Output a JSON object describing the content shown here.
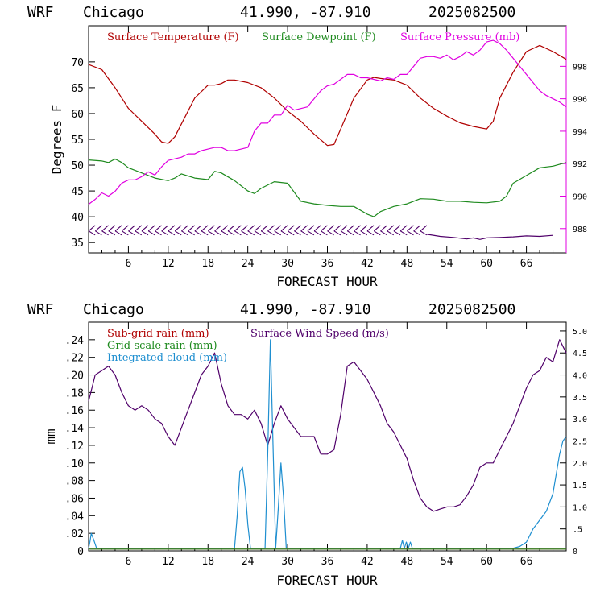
{
  "header": {
    "model": "WRF",
    "location": "Chicago",
    "coords": "41.990, -87.910",
    "run": "2025082500"
  },
  "colors": {
    "temperature": "#b00000",
    "dewpoint": "#1e8a1e",
    "pressure": "#e000e0",
    "wind_barb": "#50006a",
    "subgrid_rain": "#b00000",
    "gridscale_rain": "#1e8a1e",
    "cloud": "#1f8fd0",
    "wind_speed": "#50006a"
  },
  "chart_data": [
    {
      "type": "line",
      "xlabel": "FORECAST HOUR",
      "ylabel": "Degrees F",
      "xlim": [
        0,
        72
      ],
      "ylim": [
        33,
        77
      ],
      "y2lim": [
        986.5,
        1000.5
      ],
      "xticks": [
        6,
        12,
        18,
        24,
        30,
        36,
        42,
        48,
        54,
        60,
        66
      ],
      "yticks": [
        35,
        40,
        45,
        50,
        55,
        60,
        65,
        70
      ],
      "y2ticks": [
        988,
        990,
        992,
        994,
        996,
        998
      ],
      "legend": [
        "Surface Temperature (F)",
        "Surface Dewpoint (F)",
        "Surface Pressure (mb)"
      ],
      "series": [
        {
          "name": "Surface Temperature (F)",
          "axis": "left",
          "x": [
            0,
            2,
            4,
            6,
            8,
            10,
            11,
            12,
            13,
            14,
            16,
            18,
            19,
            20,
            21,
            22,
            24,
            26,
            28,
            30,
            32,
            34,
            36,
            37,
            38,
            40,
            42,
            43,
            44,
            46,
            48,
            50,
            52,
            54,
            56,
            58,
            60,
            61,
            62,
            64,
            66,
            68,
            70,
            72
          ],
          "values": [
            69.5,
            68.5,
            65,
            61,
            58.5,
            56,
            54.5,
            54.2,
            55.5,
            58,
            63,
            65.5,
            65.5,
            65.8,
            66.5,
            66.5,
            66,
            65,
            63,
            60.5,
            58.5,
            56,
            53.8,
            54,
            57,
            63,
            66.5,
            67,
            66.8,
            66.5,
            65.5,
            63,
            61,
            59.5,
            58.2,
            57.5,
            57,
            58.5,
            63,
            68,
            72,
            73.2,
            72,
            70.5
          ]
        },
        {
          "name": "Surface Dewpoint (F)",
          "axis": "left",
          "x": [
            0,
            2,
            3,
            4,
            5,
            6,
            8,
            10,
            12,
            13,
            14,
            16,
            18,
            19,
            20,
            22,
            24,
            25,
            26,
            28,
            30,
            32,
            34,
            36,
            38,
            40,
            42,
            43,
            44,
            46,
            48,
            50,
            52,
            54,
            56,
            58,
            60,
            62,
            63,
            64,
            66,
            68,
            70,
            72
          ],
          "values": [
            51,
            50.8,
            50.5,
            51.2,
            50.5,
            49.5,
            48.5,
            47.5,
            47,
            47.5,
            48.3,
            47.5,
            47.2,
            48.8,
            48.5,
            47,
            45,
            44.5,
            45.5,
            46.8,
            46.5,
            43,
            42.5,
            42.2,
            42,
            42,
            40.5,
            40,
            41,
            42,
            42.5,
            43.5,
            43.4,
            43,
            43,
            42.8,
            42.7,
            43,
            44,
            46.5,
            48,
            49.5,
            49.8,
            50.5
          ]
        },
        {
          "name": "Surface Pressure (mb)",
          "axis": "right",
          "x": [
            0,
            1,
            2,
            3,
            4,
            5,
            6,
            7,
            8,
            9,
            10,
            11,
            12,
            13,
            14,
            15,
            16,
            17,
            18,
            19,
            20,
            21,
            22,
            23,
            24,
            25,
            26,
            27,
            28,
            29,
            30,
            31,
            32,
            33,
            34,
            35,
            36,
            37,
            38,
            39,
            40,
            41,
            42,
            43,
            44,
            45,
            46,
            47,
            48,
            49,
            50,
            51,
            52,
            53,
            54,
            55,
            56,
            57,
            58,
            59,
            60,
            61,
            62,
            63,
            64,
            65,
            66,
            67,
            68,
            69,
            70,
            71,
            72
          ],
          "values": [
            989.5,
            989.8,
            990.2,
            990,
            990.3,
            990.8,
            991,
            991,
            991.2,
            991.5,
            991.3,
            991.8,
            992.2,
            992.3,
            992.4,
            992.6,
            992.6,
            992.8,
            992.9,
            993,
            993,
            992.8,
            992.8,
            992.9,
            993,
            994,
            994.5,
            994.5,
            995,
            995,
            995.6,
            995.3,
            995.4,
            995.5,
            996,
            996.5,
            996.8,
            996.9,
            997.2,
            997.5,
            997.5,
            997.3,
            997.3,
            997.2,
            997.1,
            997.3,
            997.2,
            997.5,
            997.5,
            998,
            998.5,
            998.6,
            998.6,
            998.5,
            998.7,
            998.4,
            998.6,
            998.9,
            998.7,
            999,
            999.5,
            999.6,
            999.4,
            999,
            998.5,
            998,
            997.5,
            997,
            996.5,
            996.2,
            996,
            995.8,
            995.5
          ]
        },
        {
          "name": "",
          "kind": "wind-barbs",
          "axis": "left",
          "y": 37.4,
          "x": [
            0.5,
            1.5,
            2.5,
            3.5,
            4.5,
            5.5,
            6.5,
            7.5,
            8.5,
            9.5,
            10.5,
            11.5,
            12.5,
            13.5,
            14.5,
            15.5,
            16.5,
            17.5,
            18.5,
            19.5,
            20.5,
            21.5,
            22.5,
            23.5,
            24.5,
            25.5,
            26.5,
            27.5,
            28.5,
            29.5,
            30.5,
            31.5,
            32.5,
            33.5,
            34.5,
            35.5,
            36.5,
            37.5,
            38.5,
            39.5,
            40.5,
            41.5,
            42.5,
            43.5,
            44.5,
            45.5,
            46.5,
            47.5,
            48.5,
            49.5,
            50.5
          ]
        },
        {
          "name": "",
          "kind": "barb-trail",
          "axis": "left",
          "x": [
            51,
            53,
            55,
            57,
            58,
            59,
            60,
            62,
            64,
            66,
            68,
            70
          ],
          "values": [
            36.6,
            36.2,
            36,
            35.7,
            35.9,
            35.6,
            35.9,
            36,
            36.1,
            36.3,
            36.2,
            36.4
          ]
        }
      ]
    },
    {
      "type": "line",
      "xlabel": "FORECAST HOUR",
      "ylabel": "mm",
      "xlim": [
        0,
        72
      ],
      "ylim": [
        0,
        0.26
      ],
      "y2lim": [
        0,
        5.2
      ],
      "xticks": [
        6,
        12,
        18,
        24,
        30,
        36,
        42,
        48,
        54,
        60,
        66
      ],
      "yticks": [
        0,
        0.02,
        0.04,
        0.06,
        0.08,
        0.1,
        0.12,
        0.14,
        0.16,
        0.18,
        0.2,
        0.22,
        0.24
      ],
      "ytick_labels": [
        "0",
        ".02",
        ".04",
        ".06",
        ".08",
        ".10",
        ".12",
        ".14",
        ".16",
        ".18",
        ".20",
        ".22",
        ".24"
      ],
      "y2ticks": [
        0,
        0.5,
        1.0,
        1.5,
        2.0,
        2.5,
        3.0,
        3.5,
        4.0,
        4.5,
        5.0
      ],
      "y2tick_labels": [
        "0",
        ".5",
        "1.0",
        "1.5",
        "2.0",
        "2.5",
        "3.0",
        "3.5",
        "4.0",
        "4.5",
        "5.0"
      ],
      "legend": [
        "Sub-grid rain (mm)",
        "Surface Wind Speed (m/s)",
        "Grid-scale rain (mm)",
        "Integrated cloud (mm)"
      ],
      "series": [
        {
          "name": "Surface Wind Speed (m/s)",
          "axis": "right",
          "x": [
            0,
            0.5,
            1,
            2,
            3,
            4,
            5,
            6,
            7,
            8,
            9,
            10,
            11,
            12,
            13,
            14,
            15,
            16,
            17,
            18,
            19,
            20,
            21,
            22,
            23,
            24,
            25,
            26,
            27,
            28,
            29,
            30,
            31,
            32,
            33,
            34,
            35,
            36,
            37,
            38,
            39,
            40,
            41,
            42,
            43,
            44,
            45,
            46,
            47,
            48,
            49,
            50,
            51,
            52,
            53,
            54,
            55,
            56,
            57,
            58,
            59,
            60,
            61,
            62,
            63,
            64,
            65,
            66,
            67,
            68,
            69,
            70,
            71,
            72
          ],
          "values": [
            3.4,
            3.7,
            4.0,
            4.1,
            4.2,
            4.0,
            3.6,
            3.3,
            3.2,
            3.3,
            3.2,
            3.0,
            2.9,
            2.6,
            2.4,
            2.8,
            3.2,
            3.6,
            4.0,
            4.2,
            4.5,
            3.8,
            3.3,
            3.1,
            3.1,
            3.0,
            3.2,
            2.9,
            2.4,
            2.9,
            3.3,
            3.0,
            2.8,
            2.6,
            2.6,
            2.6,
            2.2,
            2.2,
            2.3,
            3.1,
            4.2,
            4.3,
            4.1,
            3.9,
            3.6,
            3.3,
            2.9,
            2.7,
            2.4,
            2.1,
            1.6,
            1.2,
            1.0,
            0.9,
            0.95,
            1.0,
            1.0,
            1.05,
            1.25,
            1.5,
            1.9,
            2.0,
            2.0,
            2.3,
            2.6,
            2.9,
            3.3,
            3.7,
            4.0,
            4.1,
            4.4,
            4.3,
            4.8,
            4.5
          ]
        },
        {
          "name": "Integrated cloud (mm)",
          "axis": "left",
          "x": [
            0,
            0.2,
            0.4,
            0.8,
            1.2,
            22,
            22.4,
            22.8,
            23.2,
            23.6,
            24.0,
            24.4,
            26.6,
            27.0,
            27.4,
            27.8,
            28.2,
            28.6,
            29.0,
            29.4,
            29.8,
            30.2,
            30.6,
            47,
            47.3,
            47.6,
            47.9,
            48.2,
            48.5,
            48.8,
            49.1,
            64,
            65,
            66,
            67,
            68,
            69,
            70,
            71,
            71.5,
            72
          ],
          "values": [
            0.003,
            0.01,
            0.02,
            0.012,
            0.003,
            0.003,
            0.04,
            0.09,
            0.095,
            0.07,
            0.03,
            0.003,
            0.003,
            0.11,
            0.24,
            0.12,
            0.003,
            0.05,
            0.1,
            0.06,
            0.003,
            0.003,
            0.003,
            0.003,
            0.012,
            0.003,
            0.01,
            0.003,
            0.01,
            0.003,
            0.003,
            0.003,
            0.005,
            0.01,
            0.025,
            0.035,
            0.045,
            0.065,
            0.11,
            0.125,
            0.13
          ]
        },
        {
          "name": "Sub-grid rain (mm)",
          "axis": "left",
          "x": [
            0,
            72
          ],
          "values": [
            0.002,
            0.002
          ]
        },
        {
          "name": "Grid-scale rain (mm)",
          "axis": "left",
          "x": [
            0,
            72
          ],
          "values": [
            0.002,
            0.002
          ]
        }
      ]
    }
  ]
}
